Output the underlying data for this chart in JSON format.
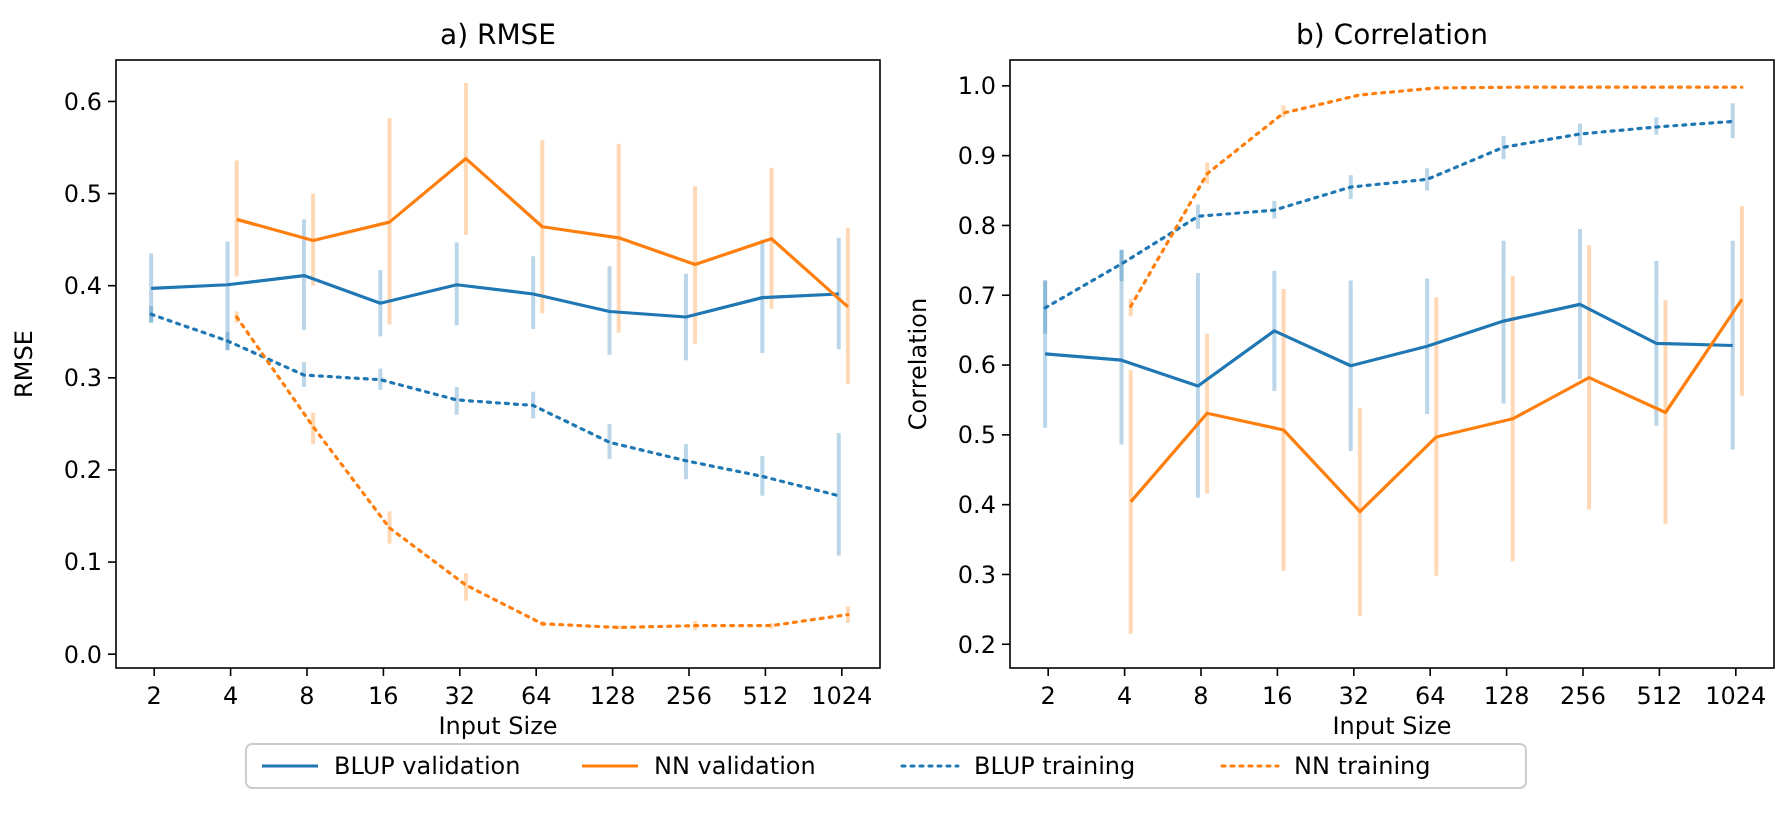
{
  "chart_data": [
    {
      "type": "line",
      "title": "a) RMSE",
      "xlabel": "Input Size",
      "ylabel": "RMSE",
      "categories": [
        "2",
        "4",
        "8",
        "16",
        "32",
        "64",
        "128",
        "256",
        "512",
        "1024"
      ],
      "ylim": [
        -0.015,
        0.645
      ],
      "yticks": [
        {
          "value": 0,
          "label": "0.0"
        },
        0.1,
        0.2,
        0.3,
        0.4,
        0.5,
        0.6
      ],
      "grid": false,
      "legend": "bottom",
      "series": [
        {
          "name": "BLUP validation",
          "color": "#1f77b4",
          "line_style": "solid",
          "values": [
            0.397,
            0.401,
            0.411,
            0.381,
            0.401,
            0.391,
            0.372,
            0.366,
            0.387,
            0.391
          ],
          "errors": [
            [
              0.36,
              0.435
            ],
            [
              0.33,
              0.448
            ],
            [
              0.352,
              0.472
            ],
            [
              0.345,
              0.417
            ],
            [
              0.357,
              0.447
            ],
            [
              0.353,
              0.432
            ],
            [
              0.325,
              0.421
            ],
            [
              0.319,
              0.413
            ],
            [
              0.327,
              0.45
            ],
            [
              0.331,
              0.452
            ]
          ]
        },
        {
          "name": "NN validation",
          "color": "#ff7f0e",
          "line_style": "solid",
          "values": [
            null,
            0.472,
            0.449,
            0.469,
            0.538,
            0.464,
            0.452,
            0.423,
            0.451,
            0.377
          ],
          "errors": [
            null,
            [
              0.41,
              0.536
            ],
            [
              0.4,
              0.5
            ],
            [
              0.358,
              0.582
            ],
            [
              0.455,
              0.62
            ],
            [
              0.37,
              0.558
            ],
            [
              0.349,
              0.554
            ],
            [
              0.337,
              0.508
            ],
            [
              0.375,
              0.528
            ],
            [
              0.293,
              0.463
            ]
          ]
        },
        {
          "name": "BLUP training",
          "color": "#1f77b4",
          "line_style": "dotted",
          "values": [
            0.369,
            0.34,
            0.303,
            0.298,
            0.276,
            0.27,
            0.23,
            0.21,
            0.193,
            0.172
          ],
          "errors": [
            [
              0.36,
              0.378
            ],
            [
              0.33,
              0.35
            ],
            [
              0.29,
              0.317
            ],
            [
              0.287,
              0.31
            ],
            [
              0.26,
              0.29
            ],
            [
              0.256,
              0.285
            ],
            [
              0.212,
              0.25
            ],
            [
              0.19,
              0.228
            ],
            [
              0.172,
              0.215
            ],
            [
              0.107,
              0.24
            ]
          ]
        },
        {
          "name": "NN training",
          "color": "#ff7f0e",
          "line_style": "dotted",
          "values": [
            null,
            0.366,
            0.247,
            0.137,
            0.075,
            0.033,
            0.029,
            0.031,
            0.031,
            0.043
          ],
          "errors": [
            null,
            [
              0.36,
              0.372
            ],
            [
              0.228,
              0.262
            ],
            [
              0.12,
              0.155
            ],
            [
              0.058,
              0.088
            ],
            [
              0.03,
              0.036
            ],
            [
              0.027,
              0.031
            ],
            [
              0.026,
              0.036
            ],
            [
              0.028,
              0.034
            ],
            [
              0.034,
              0.052
            ]
          ]
        }
      ]
    },
    {
      "type": "line",
      "title": "b) Correlation",
      "xlabel": "Input Size",
      "ylabel": "Correlation",
      "categories": [
        "2",
        "4",
        "8",
        "16",
        "32",
        "64",
        "128",
        "256",
        "512",
        "1024"
      ],
      "ylim": [
        0.166,
        1.037
      ],
      "yticks": [
        0.2,
        0.3,
        0.4,
        0.5,
        0.6,
        0.7,
        0.8,
        0.9,
        {
          "value": 1,
          "label": "1.0"
        }
      ],
      "grid": false,
      "series": [
        {
          "name": "BLUP validation",
          "color": "#1f77b4",
          "line_style": "solid",
          "values": [
            0.616,
            0.607,
            0.57,
            0.649,
            0.599,
            0.627,
            0.663,
            0.687,
            0.631,
            0.628
          ],
          "errors": [
            [
              0.51,
              0.722
            ],
            [
              0.486,
              0.765
            ],
            [
              0.41,
              0.732
            ],
            [
              0.563,
              0.735
            ],
            [
              0.477,
              0.721
            ],
            [
              0.53,
              0.724
            ],
            [
              0.545,
              0.778
            ],
            [
              0.58,
              0.795
            ],
            [
              0.513,
              0.749
            ],
            [
              0.479,
              0.778
            ]
          ]
        },
        {
          "name": "NN validation",
          "color": "#ff7f0e",
          "line_style": "solid",
          "values": [
            null,
            0.404,
            0.531,
            0.507,
            0.39,
            0.497,
            0.523,
            0.582,
            0.532,
            0.694
          ],
          "errors": [
            null,
            [
              0.215,
              0.593
            ],
            [
              0.416,
              0.645
            ],
            [
              0.305,
              0.709
            ],
            [
              0.24,
              0.539
            ],
            [
              0.298,
              0.697
            ],
            [
              0.319,
              0.728
            ],
            [
              0.393,
              0.772
            ],
            [
              0.372,
              0.693
            ],
            [
              0.556,
              0.828
            ]
          ]
        },
        {
          "name": "BLUP training",
          "color": "#1f77b4",
          "line_style": "dotted",
          "values": [
            0.682,
            0.745,
            0.813,
            0.822,
            0.855,
            0.866,
            0.912,
            0.931,
            0.941,
            0.949
          ],
          "errors": [
            [
              0.645,
              0.72
            ],
            [
              0.72,
              0.765
            ],
            [
              0.795,
              0.83
            ],
            [
              0.81,
              0.835
            ],
            [
              0.838,
              0.872
            ],
            [
              0.85,
              0.882
            ],
            [
              0.895,
              0.928
            ],
            [
              0.915,
              0.946
            ],
            [
              0.93,
              0.955
            ],
            [
              0.925,
              0.975
            ]
          ]
        },
        {
          "name": "NN training",
          "color": "#ff7f0e",
          "line_style": "dotted",
          "values": [
            null,
            0.684,
            0.874,
            0.961,
            0.987,
            0.997,
            0.998,
            0.998,
            0.998,
            0.998
          ],
          "errors": [
            null,
            [
              0.67,
              0.695
            ],
            [
              0.86,
              0.89
            ],
            [
              0.955,
              0.972
            ],
            null,
            null,
            null,
            null,
            null,
            null
          ]
        }
      ]
    }
  ]
}
